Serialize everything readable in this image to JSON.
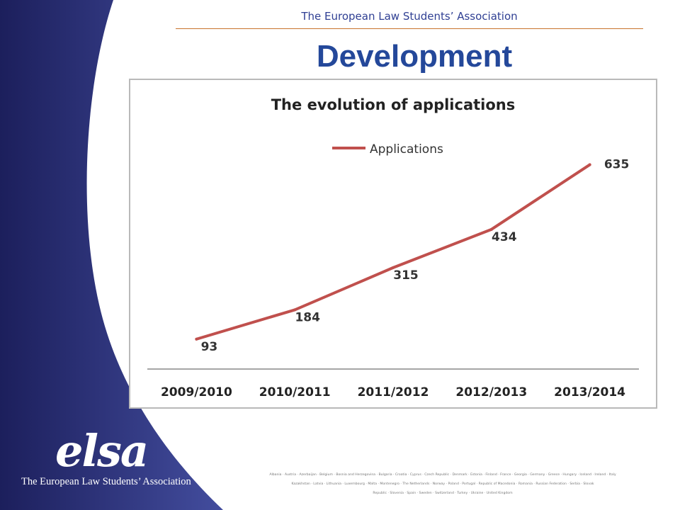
{
  "header": {
    "organization": "The European Law Students’ Association"
  },
  "slide": {
    "title": "Development"
  },
  "logo": {
    "mark": "elsa",
    "organization": "The European Law Students’ Association"
  },
  "footer": {
    "countries_lines": [
      "Albania · Austria · Azerbaijan · Belgium · Bosnia and Herzegovina · Bulgaria · Croatia · Cyprus · Czech Republic · Denmark · Estonia · Finland · France · Georgia · Germany · Greece · Hungary · Iceland · Ireland · Italy",
      "Kazakhstan · Latvia · Lithuania · Luxembourg · Malta · Montenegro · The Netherlands · Norway · Poland · Portugal · Republic of Macedonia · Romania · Russian Federation · Serbia · Slovak",
      "Republic · Slovenia · Spain · Sweden · Switzerland · Turkey · Ukraine · United Kingdom"
    ]
  },
  "colors": {
    "band_dark": "#1c1f5c",
    "band_light": "#434d9e",
    "title_blue": "#24489a",
    "rule_orange": "#c8722c",
    "series_line": "#c0504d",
    "axis_line": "#888888"
  },
  "chart_data": {
    "type": "line",
    "title": "The evolution of applications",
    "categories": [
      "2009/2010",
      "2010/2011",
      "2011/2012",
      "2012/2013",
      "2013/2014"
    ],
    "series": [
      {
        "name": "Applications",
        "values": [
          93,
          184,
          315,
          434,
          635
        ]
      }
    ],
    "data_labels": [
      "93",
      "184",
      "315",
      "434",
      "635"
    ],
    "ylim": [
      0,
      700
    ],
    "grid": false,
    "legend": "top-center"
  }
}
